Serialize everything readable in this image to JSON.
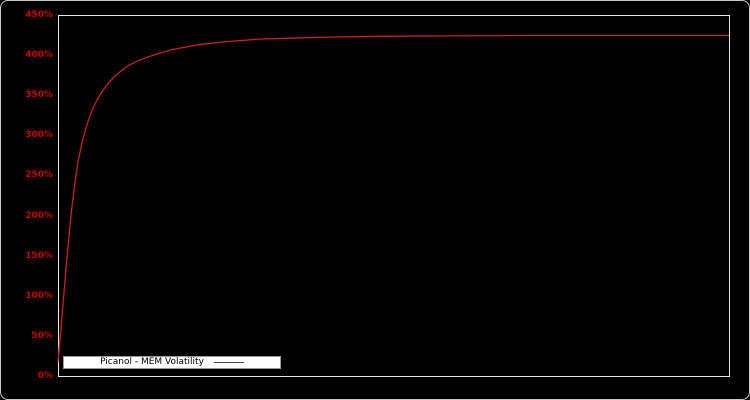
{
  "chart": {
    "background": "#000000",
    "frame_color": "#e8e8e8",
    "axis_label_color": "#cc0000",
    "legend": {
      "label": "Picanol - MEM Volatility",
      "background": "#ffffff",
      "line_color": "#444444"
    }
  },
  "chart_data": {
    "type": "line",
    "title": "",
    "xlabel": "",
    "ylabel": "",
    "ylim": [
      0,
      450
    ],
    "grid": false,
    "legend_position": "bottom-left",
    "y_ticks": [
      "0%",
      "50%",
      "100%",
      "150%",
      "200%",
      "250%",
      "300%",
      "350%",
      "400%",
      "450%"
    ],
    "y_tick_values": [
      0,
      50,
      100,
      150,
      200,
      250,
      300,
      350,
      400,
      450
    ],
    "x_axis_note": "no x tick labels visible; x normalized 0-1 across plot width",
    "series": [
      {
        "name": "Picanol - MEM Volatility",
        "color": "#cc2020",
        "points": [
          [
            0.0,
            18
          ],
          [
            0.004,
            55
          ],
          [
            0.008,
            95
          ],
          [
            0.012,
            135
          ],
          [
            0.016,
            170
          ],
          [
            0.02,
            205
          ],
          [
            0.025,
            240
          ],
          [
            0.03,
            268
          ],
          [
            0.036,
            292
          ],
          [
            0.043,
            313
          ],
          [
            0.05,
            330
          ],
          [
            0.058,
            344
          ],
          [
            0.066,
            355
          ],
          [
            0.075,
            365
          ],
          [
            0.085,
            374
          ],
          [
            0.095,
            381
          ],
          [
            0.107,
            388
          ],
          [
            0.12,
            393
          ],
          [
            0.135,
            398
          ],
          [
            0.15,
            402
          ],
          [
            0.17,
            407
          ],
          [
            0.19,
            410
          ],
          [
            0.21,
            413
          ],
          [
            0.24,
            416
          ],
          [
            0.27,
            418
          ],
          [
            0.3,
            420
          ],
          [
            0.34,
            421
          ],
          [
            0.4,
            422.5
          ],
          [
            0.48,
            423.5
          ],
          [
            0.58,
            424
          ],
          [
            0.7,
            424.5
          ],
          [
            0.85,
            424.5
          ],
          [
            1.0,
            424.5
          ]
        ]
      }
    ]
  }
}
